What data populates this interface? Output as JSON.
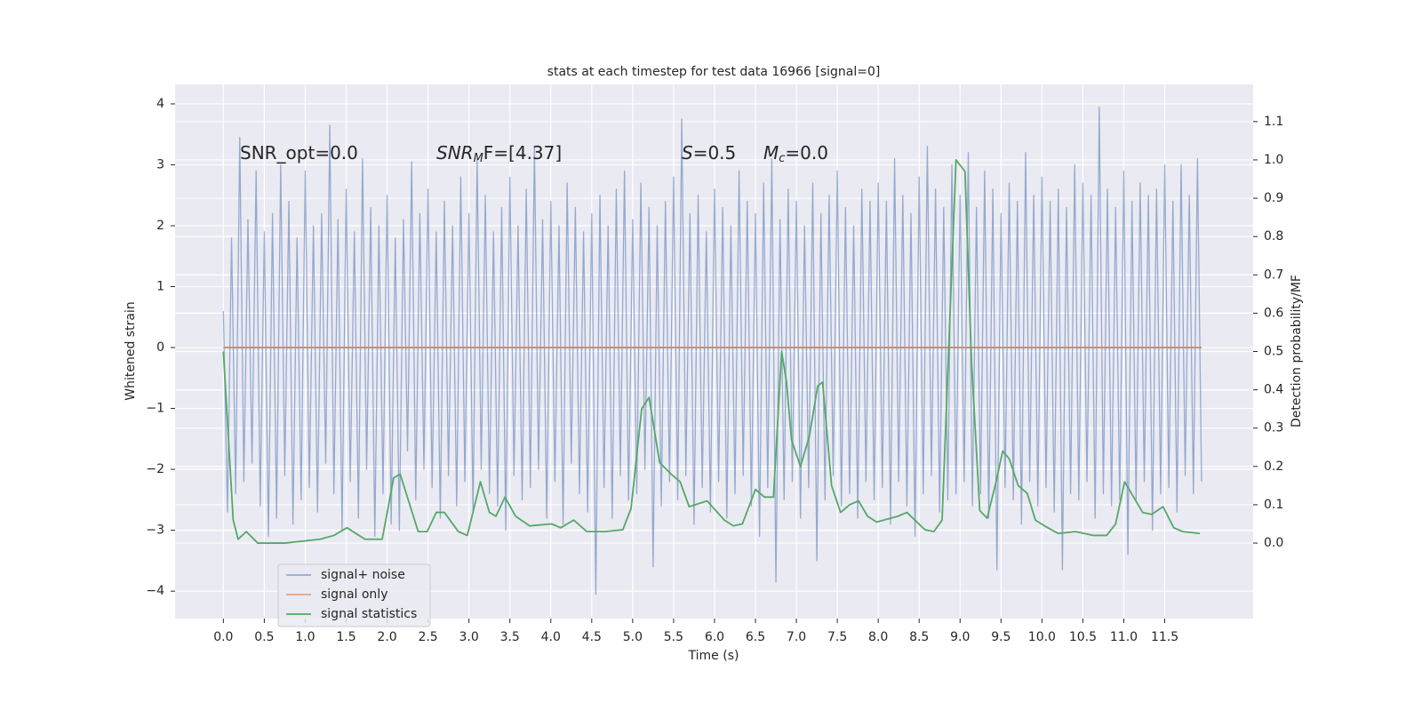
{
  "chart_data": {
    "type": "line",
    "title": "stats at each timestep for test data 16966 [signal=0]",
    "xlabel": "Time (s)",
    "ylabel": "Whitened strain",
    "y2label": "Detection probability/MF",
    "xlim": [
      -0.59,
      12.58
    ],
    "ylim": [
      -4.45,
      4.32
    ],
    "y2lim": [
      -0.197,
      1.197
    ],
    "grid": true,
    "legend": "lower left",
    "xticks": [
      {
        "value": 0,
        "label": "0.0"
      },
      {
        "value": 0.5,
        "label": "0.5"
      },
      {
        "value": 1,
        "label": "1.0"
      },
      {
        "value": 1.5,
        "label": "1.5"
      },
      {
        "value": 2,
        "label": "2.0"
      },
      {
        "value": 2.5,
        "label": "2.5"
      },
      {
        "value": 3,
        "label": "3.0"
      },
      {
        "value": 3.5,
        "label": "3.5"
      },
      {
        "value": 4,
        "label": "4.0"
      },
      {
        "value": 4.5,
        "label": "4.5"
      },
      {
        "value": 5,
        "label": "5.0"
      },
      {
        "value": 5.5,
        "label": "5.5"
      },
      {
        "value": 6,
        "label": "6.0"
      },
      {
        "value": 6.5,
        "label": "6.5"
      },
      {
        "value": 7,
        "label": "7.0"
      },
      {
        "value": 7.5,
        "label": "7.5"
      },
      {
        "value": 8,
        "label": "8.0"
      },
      {
        "value": 8.5,
        "label": "8.5"
      },
      {
        "value": 9,
        "label": "9.0"
      },
      {
        "value": 9.5,
        "label": "9.5"
      },
      {
        "value": 10,
        "label": "10.0"
      },
      {
        "value": 10.5,
        "label": "10.5"
      },
      {
        "value": 11,
        "label": "11.0"
      },
      {
        "value": 11.5,
        "label": "11.5"
      }
    ],
    "yticks": [
      {
        "value": -4,
        "label": "−4"
      },
      {
        "value": -3,
        "label": "−3"
      },
      {
        "value": -2,
        "label": "−2"
      },
      {
        "value": -1,
        "label": "−1"
      },
      0,
      1,
      2,
      3,
      4
    ],
    "y2ticks": [
      {
        "value": 0,
        "label": "0.0"
      },
      {
        "value": 0.1,
        "label": "0.1"
      },
      {
        "value": 0.2,
        "label": "0.2"
      },
      {
        "value": 0.3,
        "label": "0.3"
      },
      {
        "value": 0.4,
        "label": "0.4"
      },
      {
        "value": 0.5,
        "label": "0.5"
      },
      {
        "value": 0.6,
        "label": "0.6"
      },
      {
        "value": 0.7,
        "label": "0.7"
      },
      {
        "value": 0.8,
        "label": "0.8"
      },
      {
        "value": 0.9,
        "label": "0.9"
      },
      {
        "value": 1.0,
        "label": "1.0"
      },
      {
        "value": 1.1,
        "label": "1.1"
      }
    ],
    "annotations": [
      {
        "text": "SNR_opt=0.0"
      },
      {
        "base": "SNR",
        "sub": "M",
        "rest": "F=[4.37]"
      },
      {
        "base": "S",
        "rest": "=0.5"
      },
      {
        "base": "M",
        "sub": "c",
        "rest": "=0.0"
      }
    ],
    "series": [
      {
        "name": "signal+ noise",
        "color": "#4c72b0",
        "x": [
          0,
          0.05,
          0.1,
          0.15,
          0.2,
          0.25,
          0.3,
          0.35,
          0.4,
          0.45,
          0.5,
          0.55,
          0.6,
          0.65,
          0.7,
          0.75,
          0.8,
          0.85,
          0.9,
          0.95,
          1,
          1.05,
          1.1,
          1.15,
          1.2,
          1.25,
          1.3,
          1.35,
          1.4,
          1.45,
          1.5,
          1.55,
          1.6,
          1.65,
          1.7,
          1.75,
          1.8,
          1.85,
          1.9,
          1.95,
          2,
          2.05,
          2.1,
          2.15,
          2.2,
          2.25,
          2.3,
          2.35,
          2.4,
          2.45,
          2.5,
          2.55,
          2.6,
          2.65,
          2.7,
          2.75,
          2.8,
          2.85,
          2.9,
          2.95,
          3,
          3.05,
          3.1,
          3.15,
          3.2,
          3.25,
          3.3,
          3.35,
          3.4,
          3.45,
          3.5,
          3.55,
          3.6,
          3.65,
          3.7,
          3.75,
          3.8,
          3.85,
          3.9,
          3.95,
          4,
          4.05,
          4.1,
          4.15,
          4.2,
          4.25,
          4.3,
          4.35,
          4.4,
          4.45,
          4.5,
          4.55,
          4.6,
          4.65,
          4.7,
          4.75,
          4.8,
          4.85,
          4.9,
          4.95,
          5,
          5.05,
          5.1,
          5.15,
          5.2,
          5.25,
          5.3,
          5.35,
          5.4,
          5.45,
          5.5,
          5.55,
          5.6,
          5.65,
          5.7,
          5.75,
          5.8,
          5.85,
          5.9,
          5.95,
          6,
          6.05,
          6.1,
          6.15,
          6.2,
          6.25,
          6.3,
          6.35,
          6.4,
          6.45,
          6.5,
          6.55,
          6.6,
          6.65,
          6.7,
          6.75,
          6.8,
          6.85,
          6.9,
          6.95,
          7,
          7.05,
          7.1,
          7.15,
          7.2,
          7.25,
          7.3,
          7.35,
          7.4,
          7.45,
          7.5,
          7.55,
          7.6,
          7.65,
          7.7,
          7.75,
          7.8,
          7.85,
          7.9,
          7.95,
          8,
          8.05,
          8.1,
          8.15,
          8.2,
          8.25,
          8.3,
          8.35,
          8.4,
          8.45,
          8.5,
          8.55,
          8.6,
          8.65,
          8.7,
          8.75,
          8.8,
          8.85,
          8.9,
          8.95,
          9,
          9.05,
          9.1,
          9.15,
          9.2,
          9.25,
          9.3,
          9.35,
          9.4,
          9.45,
          9.5,
          9.55,
          9.6,
          9.65,
          9.7,
          9.75,
          9.8,
          9.85,
          9.9,
          9.95,
          10,
          10.05,
          10.1,
          10.15,
          10.2,
          10.25,
          10.3,
          10.35,
          10.4,
          10.45,
          10.5,
          10.55,
          10.6,
          10.65,
          10.7,
          10.75,
          10.8,
          10.85,
          10.9,
          10.95,
          11,
          11.05,
          11.1,
          11.15,
          11.2,
          11.25,
          11.3,
          11.35,
          11.4,
          11.45,
          11.5,
          11.55,
          11.6,
          11.65,
          11.7,
          11.75,
          11.8,
          11.85,
          11.9,
          11.95
        ],
        "values": [
          0.6,
          -2.7,
          1.8,
          -2.4,
          3.45,
          -2.2,
          2.1,
          -1.9,
          2.9,
          -2.6,
          1.9,
          -3.1,
          2.2,
          -2.8,
          3.0,
          -2.1,
          2.4,
          -2.9,
          1.8,
          -2.5,
          2.9,
          -2.3,
          2.0,
          -2.7,
          2.2,
          -1.9,
          3.65,
          -2.4,
          2.1,
          -3.0,
          2.6,
          -2.2,
          1.9,
          -2.8,
          3.1,
          -2.0,
          2.3,
          -3.1,
          2.0,
          -2.4,
          2.5,
          -2.9,
          1.8,
          -3.0,
          2.1,
          -1.7,
          3.05,
          -2.5,
          2.2,
          -2.0,
          2.6,
          -2.3,
          1.9,
          -2.8,
          2.4,
          -2.1,
          2.0,
          -2.6,
          2.8,
          -2.2,
          2.2,
          -2.7,
          3.1,
          -2.0,
          2.5,
          -2.4,
          1.9,
          -2.6,
          2.3,
          -3.0,
          2.8,
          -2.1,
          2.0,
          -2.5,
          2.6,
          -2.3,
          3.3,
          -2.0,
          2.1,
          -2.8,
          2.4,
          -2.2,
          2.0,
          -2.9,
          2.7,
          -1.9,
          2.3,
          -2.4,
          1.9,
          -2.7,
          2.2,
          -4.05,
          2.5,
          -2.3,
          2.0,
          -2.8,
          2.6,
          -2.1,
          2.9,
          -2.5,
          2.1,
          -2.4,
          2.7,
          -2.0,
          2.3,
          -3.6,
          2.0,
          -2.6,
          2.4,
          -2.2,
          2.8,
          -2.5,
          3.75,
          -2.1,
          2.2,
          -2.9,
          2.5,
          -2.3,
          1.9,
          -2.7,
          2.6,
          -2.2,
          2.3,
          -2.8,
          2.0,
          -2.4,
          2.9,
          -2.1,
          2.4,
          -2.6,
          2.2,
          -3.1,
          2.7,
          -2.3,
          3.1,
          -3.85,
          2.1,
          -2.5,
          2.6,
          -2.2,
          2.4,
          -2.8,
          2.0,
          -2.3,
          2.7,
          -3.5,
          2.2,
          -2.5,
          2.5,
          -2.1,
          2.9,
          -2.6,
          2.3,
          -2.4,
          2.0,
          -2.8,
          2.6,
          -2.2,
          2.4,
          -2.5,
          2.7,
          -2.3,
          2.4,
          -2.9,
          3.1,
          -2.2,
          2.5,
          -2.6,
          2.2,
          -3.1,
          2.8,
          -2.4,
          3.3,
          -2.1,
          2.6,
          -2.7,
          2.3,
          -2.5,
          3.0,
          -2.4,
          2.5,
          -2.2,
          3.2,
          -2.6,
          2.3,
          -2.4,
          2.9,
          -2.8,
          2.6,
          -3.65,
          2.2,
          -2.3,
          2.7,
          -2.5,
          2.4,
          -2.9,
          3.2,
          -2.2,
          2.5,
          -2.6,
          2.8,
          -2.3,
          2.4,
          -2.7,
          2.6,
          -3.65,
          2.3,
          -2.4,
          3.0,
          -2.5,
          2.7,
          -2.2,
          2.5,
          -2.8,
          3.95,
          -2.4,
          2.6,
          -2.6,
          2.3,
          -2.5,
          2.9,
          -3.4,
          2.4,
          -2.5,
          2.7,
          -2.2,
          2.5,
          -3.0,
          2.6,
          -2.4,
          3.0,
          -2.3,
          2.4,
          -2.7,
          3.0,
          -2.1,
          2.5,
          -2.4,
          3.1,
          -2.2
        ]
      },
      {
        "name": "signal only",
        "color": "#dd8452",
        "x": [
          0,
          11.95
        ],
        "values": [
          0,
          0
        ]
      },
      {
        "name": "signal statistics",
        "color": "#55a868",
        "axis": "y2",
        "x": [
          0,
          0.12,
          0.18,
          0.28,
          0.42,
          0.75,
          1.18,
          1.35,
          1.51,
          1.73,
          1.94,
          2.08,
          2.16,
          2.38,
          2.49,
          2.6,
          2.7,
          2.87,
          2.98,
          3.14,
          3.25,
          3.33,
          3.44,
          3.57,
          3.74,
          4.01,
          4.12,
          4.28,
          4.44,
          4.66,
          4.88,
          4.98,
          5.11,
          5.2,
          5.33,
          5.47,
          5.58,
          5.69,
          5.91,
          6.12,
          6.23,
          6.34,
          6.5,
          6.61,
          6.72,
          6.82,
          6.88,
          6.94,
          7.05,
          7.16,
          7.26,
          7.32,
          7.43,
          7.54,
          7.65,
          7.76,
          7.87,
          7.98,
          8.24,
          8.35,
          8.57,
          8.68,
          8.78,
          8.95,
          9.06,
          9.14,
          9.24,
          9.33,
          9.44,
          9.52,
          9.6,
          9.71,
          9.82,
          9.92,
          10.03,
          10.2,
          10.41,
          10.63,
          10.79,
          10.9,
          11.01,
          11.12,
          11.23,
          11.34,
          11.48,
          11.61,
          11.72,
          11.93
        ],
        "values": [
          0.5,
          0.06,
          0.01,
          0.03,
          0.0,
          0.0,
          0.01,
          0.02,
          0.04,
          0.01,
          0.01,
          0.17,
          0.18,
          0.03,
          0.03,
          0.08,
          0.08,
          0.03,
          0.02,
          0.16,
          0.08,
          0.07,
          0.12,
          0.07,
          0.045,
          0.05,
          0.04,
          0.06,
          0.03,
          0.03,
          0.035,
          0.09,
          0.35,
          0.38,
          0.21,
          0.18,
          0.16,
          0.095,
          0.11,
          0.06,
          0.045,
          0.05,
          0.14,
          0.12,
          0.12,
          0.5,
          0.42,
          0.27,
          0.2,
          0.28,
          0.41,
          0.42,
          0.15,
          0.08,
          0.1,
          0.11,
          0.07,
          0.055,
          0.07,
          0.08,
          0.035,
          0.03,
          0.06,
          1.0,
          0.97,
          0.47,
          0.085,
          0.065,
          0.16,
          0.24,
          0.22,
          0.15,
          0.13,
          0.06,
          0.045,
          0.025,
          0.03,
          0.02,
          0.02,
          0.05,
          0.16,
          0.12,
          0.08,
          0.075,
          0.095,
          0.04,
          0.03,
          0.025
        ]
      }
    ]
  }
}
